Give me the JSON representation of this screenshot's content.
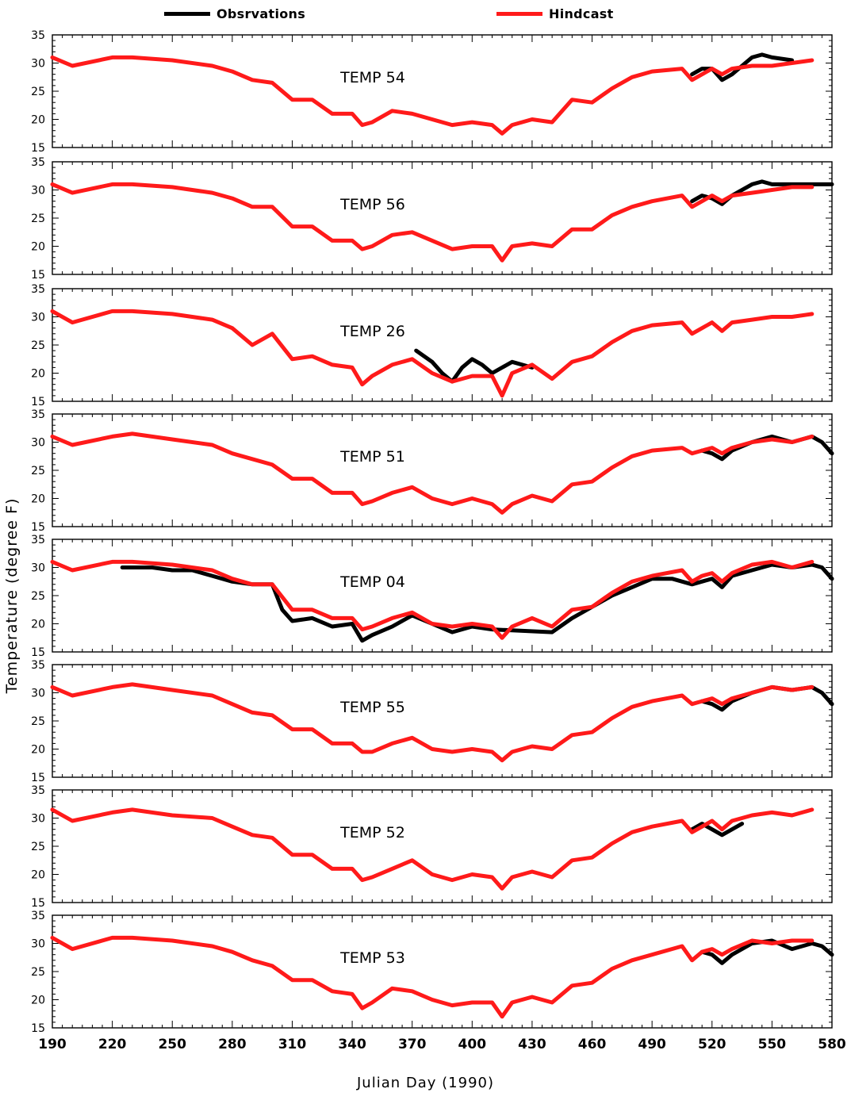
{
  "legend": {
    "observations_label": "Obsrvations",
    "observations_color": "#000000",
    "hindcast_label": "Hindcast",
    "hindcast_color": "#ff1a1a"
  },
  "axes": {
    "ylabel": "Temperature  (degree F)",
    "xlabel": "Julian Day (1990)"
  },
  "chart_data": {
    "type": "line",
    "xlabel": "Julian Day (1990)",
    "ylabel": "Temperature  (degree F)",
    "xlim": [
      190,
      580
    ],
    "ylim": [
      15,
      35
    ],
    "xticks": [
      190,
      220,
      250,
      280,
      310,
      340,
      370,
      400,
      430,
      460,
      490,
      520,
      550,
      580
    ],
    "yticks": [
      15,
      20,
      25,
      30,
      35
    ],
    "legend": [
      "Obsrvations",
      "Hindcast"
    ],
    "legend_position": "top",
    "panels": [
      {
        "title": "TEMP 54",
        "series": [
          {
            "name": "Hindcast",
            "x": [
              190,
              200,
              220,
              230,
              250,
              270,
              280,
              290,
              300,
              310,
              320,
              330,
              340,
              345,
              350,
              360,
              370,
              380,
              390,
              400,
              410,
              415,
              420,
              430,
              440,
              450,
              460,
              470,
              480,
              490,
              505,
              510,
              515,
              520,
              525,
              530,
              540,
              550,
              560,
              570
            ],
            "y": [
              31,
              29.5,
              31,
              31,
              30.5,
              29.5,
              28.5,
              27,
              26.5,
              23.5,
              23.5,
              21,
              21,
              19,
              19.5,
              21.5,
              21,
              20,
              19,
              19.5,
              19,
              17.5,
              19,
              20,
              19.5,
              23.5,
              23,
              25.5,
              27.5,
              28.5,
              29,
              27,
              28,
              29,
              28,
              29,
              29.5,
              29.5,
              30,
              30.5
            ]
          },
          {
            "name": "Obsrvations",
            "x": [
              510,
              515,
              520,
              525,
              530,
              540,
              545,
              550,
              560
            ],
            "y": [
              28,
              29,
              29,
              27,
              28,
              31,
              31.5,
              31,
              30.5
            ]
          }
        ]
      },
      {
        "title": "TEMP 56",
        "series": [
          {
            "name": "Hindcast",
            "x": [
              190,
              200,
              220,
              230,
              250,
              270,
              280,
              290,
              300,
              310,
              320,
              330,
              340,
              345,
              350,
              360,
              370,
              380,
              390,
              400,
              410,
              415,
              420,
              430,
              440,
              450,
              460,
              470,
              480,
              490,
              505,
              510,
              515,
              520,
              525,
              530,
              540,
              550,
              560,
              570
            ],
            "y": [
              31,
              29.5,
              31,
              31,
              30.5,
              29.5,
              28.5,
              27,
              27,
              23.5,
              23.5,
              21,
              21,
              19.5,
              20,
              22,
              22.5,
              21,
              19.5,
              20,
              20,
              17.5,
              20,
              20.5,
              20,
              23,
              23,
              25.5,
              27,
              28,
              29,
              27,
              28,
              29,
              28,
              29,
              29.5,
              30,
              30.5,
              30.5
            ]
          },
          {
            "name": "Obsrvations",
            "x": [
              510,
              515,
              520,
              525,
              530,
              540,
              545,
              550,
              560,
              570,
              580
            ],
            "y": [
              28,
              29,
              28.5,
              27.5,
              29,
              31,
              31.5,
              31,
              31,
              31,
              31
            ]
          }
        ]
      },
      {
        "title": "TEMP 26",
        "series": [
          {
            "name": "Hindcast",
            "x": [
              190,
              200,
              220,
              230,
              250,
              270,
              280,
              290,
              300,
              310,
              320,
              330,
              340,
              345,
              350,
              360,
              370,
              380,
              390,
              400,
              410,
              415,
              420,
              430,
              440,
              450,
              460,
              470,
              480,
              490,
              505,
              510,
              515,
              520,
              525,
              530,
              540,
              550,
              560,
              570
            ],
            "y": [
              31,
              29,
              31,
              31,
              30.5,
              29.5,
              28,
              25,
              27,
              22.5,
              23,
              21.5,
              21,
              18,
              19.5,
              21.5,
              22.5,
              20,
              18.5,
              19.5,
              19.5,
              16,
              20,
              21.5,
              19,
              22,
              23,
              25.5,
              27.5,
              28.5,
              29,
              27,
              28,
              29,
              27.5,
              29,
              29.5,
              30,
              30,
              30.5
            ]
          },
          {
            "name": "Obsrvations",
            "x": [
              372,
              380,
              385,
              390,
              395,
              400,
              405,
              410,
              420,
              430
            ],
            "y": [
              24,
              22,
              20,
              18.5,
              21,
              22.5,
              21.5,
              20,
              22,
              21
            ]
          }
        ]
      },
      {
        "title": "TEMP 51",
        "series": [
          {
            "name": "Hindcast",
            "x": [
              190,
              200,
              220,
              230,
              250,
              270,
              280,
              290,
              300,
              310,
              320,
              330,
              340,
              345,
              350,
              360,
              370,
              380,
              390,
              400,
              410,
              415,
              420,
              430,
              440,
              450,
              460,
              470,
              480,
              490,
              505,
              510,
              515,
              520,
              525,
              530,
              540,
              550,
              560,
              570
            ],
            "y": [
              31,
              29.5,
              31,
              31.5,
              30.5,
              29.5,
              28,
              27,
              26,
              23.5,
              23.5,
              21,
              21,
              19,
              19.5,
              21,
              22,
              20,
              19,
              20,
              19,
              17.5,
              19,
              20.5,
              19.5,
              22.5,
              23,
              25.5,
              27.5,
              28.5,
              29,
              28,
              28.5,
              29,
              28,
              29,
              30,
              30.5,
              30,
              31
            ]
          },
          {
            "name": "Obsrvations",
            "x": [
              515,
              520,
              525,
              530,
              540,
              550,
              560,
              570,
              575,
              580
            ],
            "y": [
              28.5,
              28,
              27,
              28.5,
              30,
              31,
              30,
              31,
              30,
              28
            ]
          }
        ]
      },
      {
        "title": "TEMP 04",
        "series": [
          {
            "name": "Hindcast",
            "x": [
              190,
              200,
              220,
              230,
              250,
              270,
              280,
              290,
              300,
              310,
              320,
              330,
              340,
              345,
              350,
              360,
              370,
              380,
              390,
              400,
              410,
              415,
              420,
              430,
              440,
              450,
              460,
              470,
              480,
              490,
              505,
              510,
              515,
              520,
              525,
              530,
              540,
              550,
              560,
              570
            ],
            "y": [
              31,
              29.5,
              31,
              31,
              30.5,
              29.5,
              28,
              27,
              27,
              22.5,
              22.5,
              21,
              21,
              19,
              19.5,
              21,
              22,
              20,
              19.5,
              20,
              19.5,
              17.5,
              19.5,
              21,
              19.5,
              22.5,
              23,
              25.5,
              27.5,
              28.5,
              29.5,
              27.5,
              28.5,
              29,
              27.5,
              29,
              30.5,
              31,
              30,
              31
            ]
          },
          {
            "name": "Obsrvations",
            "x": [
              225,
              240,
              250,
              260,
              270,
              280,
              290,
              300,
              305,
              310,
              320,
              330,
              340,
              345,
              350,
              360,
              370,
              380,
              390,
              400,
              410,
              440,
              450,
              460,
              470,
              480,
              490,
              500,
              510,
              520,
              525,
              530,
              540,
              550,
              560,
              570,
              575,
              580
            ],
            "y": [
              30,
              30,
              29.5,
              29.5,
              28.5,
              27.5,
              27,
              27,
              22.5,
              20.5,
              21,
              19.5,
              20,
              17,
              18,
              19.5,
              21.5,
              20,
              18.5,
              19.5,
              19,
              18.5,
              21,
              23,
              25,
              26.5,
              28,
              28,
              27,
              28,
              26.5,
              28.5,
              29.5,
              30.5,
              30,
              30.5,
              30,
              28
            ]
          }
        ]
      },
      {
        "title": "TEMP 55",
        "series": [
          {
            "name": "Hindcast",
            "x": [
              190,
              200,
              220,
              230,
              250,
              270,
              280,
              290,
              300,
              310,
              320,
              330,
              340,
              345,
              350,
              360,
              370,
              380,
              390,
              400,
              410,
              415,
              420,
              430,
              440,
              450,
              460,
              470,
              480,
              490,
              505,
              510,
              515,
              520,
              525,
              530,
              540,
              550,
              560,
              570
            ],
            "y": [
              31,
              29.5,
              31,
              31.5,
              30.5,
              29.5,
              28,
              26.5,
              26,
              23.5,
              23.5,
              21,
              21,
              19.5,
              19.5,
              21,
              22,
              20,
              19.5,
              20,
              19.5,
              18,
              19.5,
              20.5,
              20,
              22.5,
              23,
              25.5,
              27.5,
              28.5,
              29.5,
              28,
              28.5,
              29,
              28,
              29,
              30,
              31,
              30.5,
              31
            ]
          },
          {
            "name": "Obsrvations",
            "x": [
              515,
              520,
              525,
              530,
              540,
              550,
              560,
              570,
              575,
              580
            ],
            "y": [
              28.5,
              28,
              27,
              28.5,
              30,
              31,
              30.5,
              31,
              30,
              28
            ]
          }
        ]
      },
      {
        "title": "TEMP 52",
        "series": [
          {
            "name": "Hindcast",
            "x": [
              190,
              200,
              220,
              230,
              250,
              270,
              280,
              290,
              300,
              310,
              320,
              330,
              340,
              345,
              350,
              360,
              370,
              380,
              390,
              400,
              410,
              415,
              420,
              430,
              440,
              450,
              460,
              470,
              480,
              490,
              505,
              510,
              515,
              520,
              525,
              530,
              540,
              550,
              560,
              570
            ],
            "y": [
              31.5,
              29.5,
              31,
              31.5,
              30.5,
              30,
              28.5,
              27,
              26.5,
              23.5,
              23.5,
              21,
              21,
              19,
              19.5,
              21,
              22.5,
              20,
              19,
              20,
              19.5,
              17.5,
              19.5,
              20.5,
              19.5,
              22.5,
              23,
              25.5,
              27.5,
              28.5,
              29.5,
              27.5,
              28.5,
              29.5,
              28,
              29.5,
              30.5,
              31,
              30.5,
              31.5
            ]
          },
          {
            "name": "Obsrvations",
            "x": [
              510,
              515,
              520,
              525,
              530,
              535
            ],
            "y": [
              28,
              29,
              28,
              27,
              28,
              29
            ]
          }
        ]
      },
      {
        "title": "TEMP 53",
        "series": [
          {
            "name": "Hindcast",
            "x": [
              190,
              200,
              220,
              230,
              250,
              270,
              280,
              290,
              300,
              310,
              320,
              330,
              340,
              345,
              350,
              360,
              370,
              380,
              390,
              400,
              410,
              415,
              420,
              430,
              440,
              450,
              460,
              470,
              480,
              490,
              505,
              510,
              515,
              520,
              525,
              530,
              540,
              550,
              560,
              570
            ],
            "y": [
              31,
              29,
              31,
              31,
              30.5,
              29.5,
              28.5,
              27,
              26,
              23.5,
              23.5,
              21.5,
              21,
              18.5,
              19.5,
              22,
              21.5,
              20,
              19,
              19.5,
              19.5,
              17,
              19.5,
              20.5,
              19.5,
              22.5,
              23,
              25.5,
              27,
              28,
              29.5,
              27,
              28.5,
              29,
              28,
              29,
              30.5,
              30,
              30.5,
              30.5
            ]
          },
          {
            "name": "Obsrvations",
            "x": [
              515,
              520,
              525,
              530,
              540,
              550,
              560,
              570,
              575,
              580
            ],
            "y": [
              28.5,
              28,
              26.5,
              28,
              30,
              30.5,
              29,
              30,
              29.5,
              28
            ]
          }
        ]
      }
    ]
  }
}
